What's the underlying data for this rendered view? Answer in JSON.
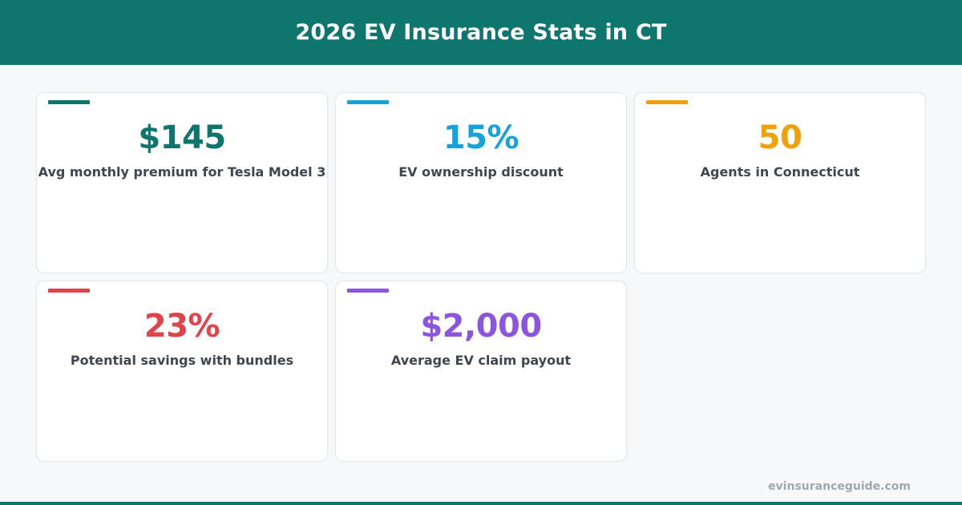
{
  "header": {
    "title": "2026 EV Insurance Stats in CT",
    "background": "#0f766e"
  },
  "stats": [
    {
      "value": "$145",
      "label": "Avg monthly premium for Tesla Model 3",
      "color": "#0f766e"
    },
    {
      "value": "15%",
      "label": "EV ownership discount",
      "color": "#14a3db"
    },
    {
      "value": "50",
      "label": "Agents in Connecticut",
      "color": "#f2a007"
    },
    {
      "value": "23%",
      "label": "Potential savings with bundles",
      "color": "#e0434a"
    },
    {
      "value": "$2,000",
      "label": "Average EV claim payout",
      "color": "#8b55e0"
    }
  ],
  "footer": {
    "site": "evinsuranceguide.com"
  }
}
